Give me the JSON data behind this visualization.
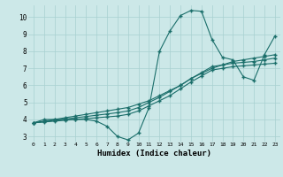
{
  "xlabel": "Humidex (Indice chaleur)",
  "bg_color": "#cce8e8",
  "line_color": "#1a6e6a",
  "grid_color": "#a8d0d0",
  "xlim": [
    -0.5,
    23.5
  ],
  "ylim": [
    2.7,
    10.7
  ],
  "yticks": [
    3,
    4,
    5,
    6,
    7,
    8,
    9,
    10
  ],
  "xticks": [
    0,
    1,
    2,
    3,
    4,
    5,
    6,
    7,
    8,
    9,
    10,
    11,
    12,
    13,
    14,
    15,
    16,
    17,
    18,
    19,
    20,
    21,
    22,
    23
  ],
  "series1_x": [
    0,
    1,
    2,
    3,
    4,
    5,
    6,
    7,
    8,
    9,
    10,
    11,
    12,
    13,
    14,
    15,
    16,
    17,
    18,
    19,
    20,
    21,
    22,
    23
  ],
  "series1_y": [
    3.8,
    4.0,
    4.0,
    4.0,
    4.0,
    4.0,
    3.9,
    3.6,
    3.0,
    2.8,
    3.2,
    4.7,
    8.0,
    9.2,
    10.1,
    10.4,
    10.35,
    8.7,
    7.65,
    7.5,
    6.5,
    6.3,
    7.8,
    8.9
  ],
  "series2_x": [
    0,
    1,
    2,
    3,
    4,
    5,
    6,
    7,
    8,
    9,
    10,
    11,
    12,
    13,
    14,
    15,
    16,
    17,
    18,
    19,
    20,
    21,
    22,
    23
  ],
  "series2_y": [
    3.8,
    3.9,
    4.0,
    4.1,
    4.2,
    4.3,
    4.4,
    4.5,
    4.6,
    4.7,
    4.9,
    5.1,
    5.4,
    5.7,
    6.0,
    6.4,
    6.7,
    7.0,
    7.2,
    7.4,
    7.5,
    7.6,
    7.7,
    7.8
  ],
  "series3_x": [
    0,
    1,
    2,
    3,
    4,
    5,
    6,
    7,
    8,
    9,
    10,
    11,
    12,
    13,
    14,
    15,
    16,
    17,
    18,
    19,
    20,
    21,
    22,
    23
  ],
  "series3_y": [
    3.8,
    3.85,
    3.9,
    3.95,
    4.0,
    4.05,
    4.1,
    4.15,
    4.2,
    4.3,
    4.5,
    4.8,
    5.1,
    5.4,
    5.8,
    6.2,
    6.55,
    6.9,
    7.0,
    7.1,
    7.15,
    7.2,
    7.25,
    7.3
  ],
  "series4_x": [
    0,
    1,
    2,
    3,
    4,
    5,
    6,
    7,
    8,
    9,
    10,
    11,
    12,
    13,
    14,
    15,
    16,
    17,
    18,
    19,
    20,
    21,
    22,
    23
  ],
  "series4_y": [
    3.8,
    3.87,
    3.95,
    4.02,
    4.1,
    4.17,
    4.25,
    4.32,
    4.4,
    4.5,
    4.7,
    5.0,
    5.3,
    5.65,
    6.0,
    6.4,
    6.75,
    7.1,
    7.2,
    7.3,
    7.35,
    7.4,
    7.5,
    7.6
  ]
}
